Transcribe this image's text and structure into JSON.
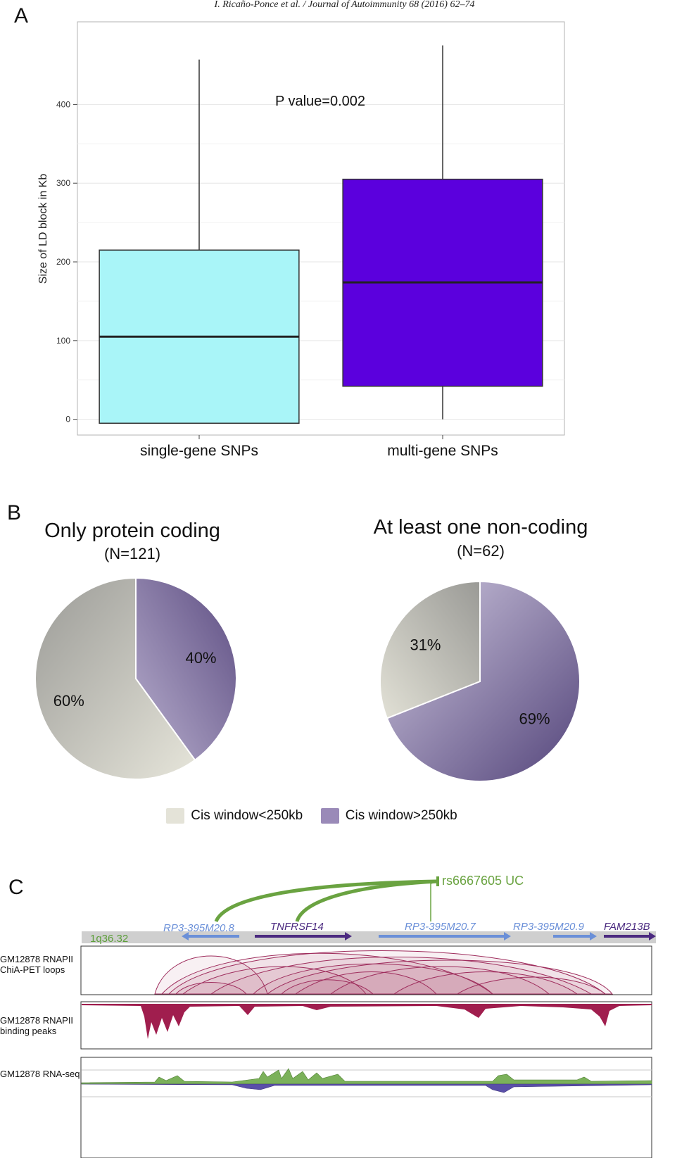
{
  "header": "I. Ricaño-Ponce et al. / Journal of Autoimmunity 68 (2016) 62–74",
  "panels": {
    "a": "A",
    "b": "B",
    "c": "C"
  },
  "chart_data": [
    {
      "type": "boxplot",
      "panel": "A",
      "ylabel": "Size of LD block in Kb",
      "ylim": [
        -20,
        505
      ],
      "yticks": [
        0,
        100,
        200,
        300,
        400
      ],
      "grid": true,
      "categories": [
        "single-gene SNPs",
        "multi-gene SNPs"
      ],
      "boxes": [
        {
          "category": "single-gene SNPs",
          "min": -5,
          "q1": -5,
          "median": 105,
          "q3": 215,
          "max": 457,
          "color": "#a9f5f8"
        },
        {
          "category": "multi-gene SNPs",
          "min": 0,
          "q1": 42,
          "median": 174,
          "q3": 305,
          "max": 475,
          "color": "#5b00dd"
        }
      ],
      "annotation": "P value=0.002"
    },
    {
      "type": "pie",
      "panel": "B",
      "title": "Only protein coding",
      "subtitle": "(N=121)",
      "slices": [
        {
          "name": "Cis window>250kb",
          "value": 40,
          "label": "40%"
        },
        {
          "name": "Cis window<250kb",
          "value": 60,
          "label": "60%"
        }
      ]
    },
    {
      "type": "pie",
      "panel": "B",
      "title": "At least one non-coding",
      "subtitle": "(N=62)",
      "slices": [
        {
          "name": "Cis window>250kb",
          "value": 69,
          "label": "69%"
        },
        {
          "name": "Cis window<250kb",
          "value": 31,
          "label": "31%"
        }
      ]
    }
  ],
  "legend": [
    {
      "name": "Cis window<250kb",
      "color": "#e4e3d8"
    },
    {
      "name": "Cis window>250kb",
      "color": "#9a8ab8"
    }
  ],
  "browser": {
    "snp": "rs6667605 UC",
    "band": "1q36.32",
    "genes": [
      {
        "name": "RP3-395M20.8",
        "color": "#6a8fd8"
      },
      {
        "name": "TNFRSF14",
        "color": "#4b2a80"
      },
      {
        "name": "RP3-395M20.7",
        "color": "#6a8fd8"
      },
      {
        "name": "RP3-395M20.9",
        "color": "#6a8fd8"
      },
      {
        "name": "FAM213B",
        "color": "#4b2a80"
      }
    ],
    "tracks": [
      {
        "line1": "GM12878 RNAPII",
        "line2": "ChiA-PET loops"
      },
      {
        "line1": "GM12878 RNAPII",
        "line2": "binding peaks"
      },
      {
        "line1": "GM12878 RNA-seq",
        "line2": ""
      }
    ]
  }
}
